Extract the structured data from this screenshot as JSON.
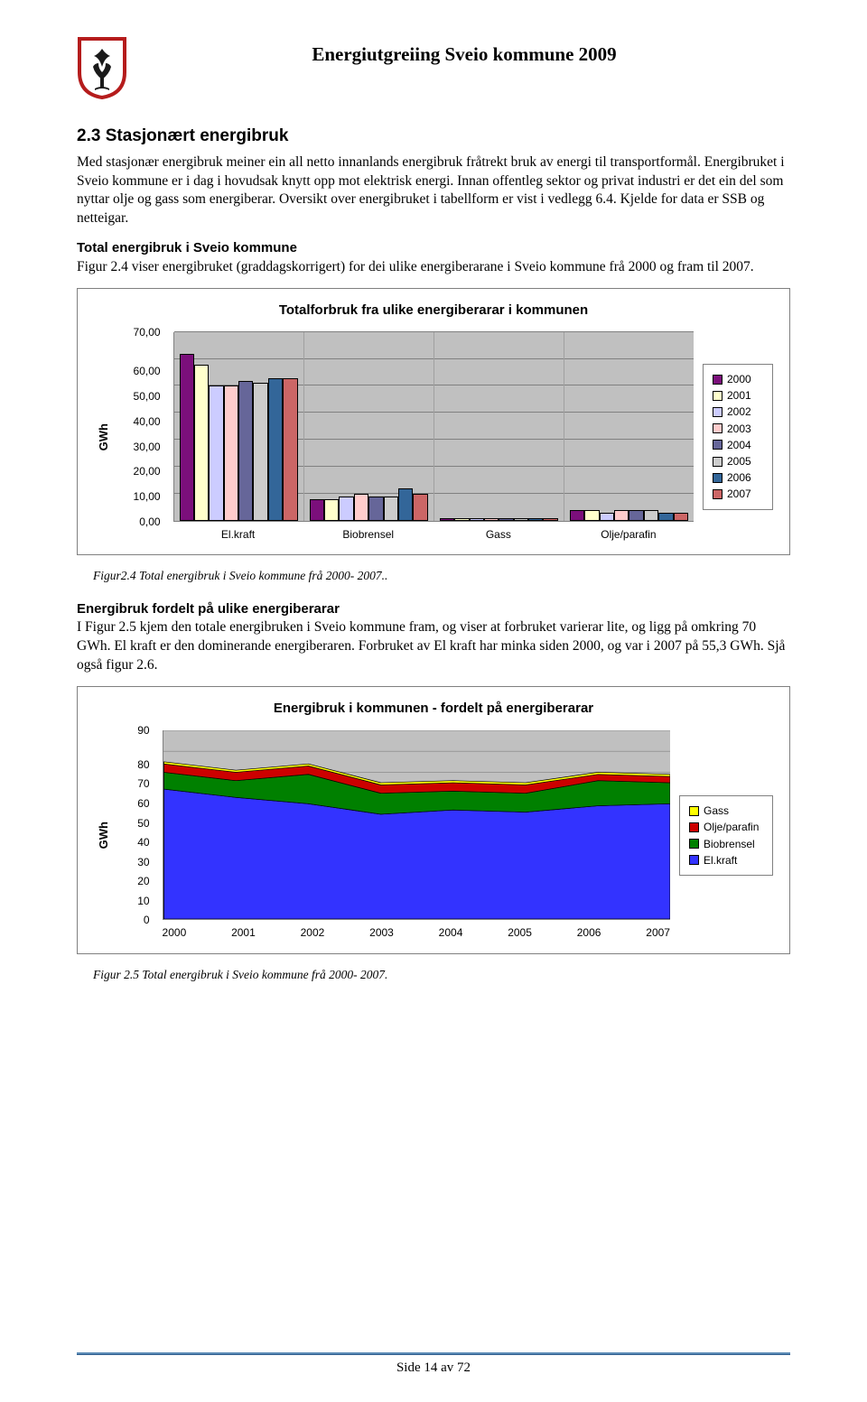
{
  "header": {
    "title": "Energiutgreiing Sveio kommune 2009",
    "shield_colors": {
      "bg": "#ffffff",
      "border": "#b51c1c",
      "fleur": "#1a1a1a"
    }
  },
  "section": {
    "number": "2.3",
    "title": "Stasjonært energibruk",
    "para1": "Med stasjonær energibruk meiner ein all netto innanlands energibruk fråtrekt bruk av energi til transportformål. Energibruket i Sveio kommune er i dag i hovudsak knytt opp mot elektrisk energi. Innan offentleg sektor og privat industri er det ein del som nyttar olje og gass som energiberar. Oversikt over energibruket i tabellform er vist i vedlegg 6.4. Kjelde for data er SSB og netteigar.",
    "sub1_title": "Total energibruk i Sveio kommune",
    "sub1_para": "Figur 2.4 viser energibruket (graddagskorrigert) for dei ulike energiberarane i Sveio kommune frå 2000 og fram til 2007.",
    "sub2_title": "Energibruk fordelt på ulike energiberarar",
    "sub2_para": "I Figur 2.5 kjem den totale energibruken i Sveio kommune fram, og viser at forbruket varierar lite, og ligg på omkring 70 GWh. El kraft er den dominerande energiberaren. Forbruket av El kraft har minka siden 2000, og var i 2007 på 55,3 GWh. Sjå også figur 2.6."
  },
  "chart1": {
    "title": "Totalforbruk fra ulike energiberarar i kommunen",
    "y_label": "GWh",
    "y_ticks": [
      "0,00",
      "10,00",
      "20,00",
      "30,00",
      "40,00",
      "50,00",
      "60,00",
      "70,00"
    ],
    "y_max": 70,
    "categories": [
      "El.kraft",
      "Biobrensel",
      "Gass",
      "Olje/parafin"
    ],
    "years": [
      "2000",
      "2001",
      "2002",
      "2003",
      "2004",
      "2005",
      "2006",
      "2007"
    ],
    "year_colors": [
      "#7b0f7b",
      "#ffffcc",
      "#ccccff",
      "#ffcccc",
      "#666699",
      "#cccccc",
      "#336699",
      "#cc6666"
    ],
    "values": {
      "El.kraft": [
        62,
        58,
        50,
        50,
        52,
        51,
        53,
        53
      ],
      "Biobrensel": [
        8,
        8,
        9,
        10,
        9,
        9,
        12,
        10
      ],
      "Gass": [
        1,
        1,
        1,
        1,
        1,
        1,
        1,
        1
      ],
      "Olje/parafin": [
        4,
        4,
        3,
        4,
        4,
        4,
        3,
        3
      ]
    },
    "background": "#c0c0c0",
    "gridline": "#808080",
    "caption": "Figur2.4 Total energibruk i Sveio kommune frå 2000- 2007.."
  },
  "chart2": {
    "title": "Energibruk i kommunen - fordelt på energiberarar",
    "y_label": "GWh",
    "y_ticks": [
      "0",
      "10",
      "20",
      "30",
      "40",
      "50",
      "60",
      "70",
      "80",
      "90"
    ],
    "y_max": 90,
    "x_labels": [
      "2000",
      "2001",
      "2002",
      "2003",
      "2004",
      "2005",
      "2006",
      "2007"
    ],
    "series": [
      {
        "name": "El.kraft",
        "color": "#3333ff",
        "label": "El.kraft"
      },
      {
        "name": "Biobrensel",
        "color": "#008000",
        "label": "Biobrensel"
      },
      {
        "name": "Olje/parafin",
        "color": "#cc0000",
        "label": "Olje/parafin"
      },
      {
        "name": "Gass",
        "color": "#ffff00",
        "label": "Gass"
      }
    ],
    "stack": {
      "El.kraft": [
        62,
        58,
        55,
        50,
        52,
        51,
        54,
        55
      ],
      "Biobrensel": [
        8,
        8,
        14,
        10,
        9,
        9,
        12,
        10
      ],
      "Olje/parafin": [
        4,
        4,
        4,
        4,
        4,
        4,
        3,
        3
      ],
      "Gass": [
        1,
        1,
        1,
        1,
        1,
        1,
        1,
        1
      ]
    },
    "background": "#c0c0c0",
    "caption": "Figur 2.5  Total energibruk i Sveio kommune frå 2000- 2007."
  },
  "footer": {
    "text": "Side 14 av 72"
  }
}
